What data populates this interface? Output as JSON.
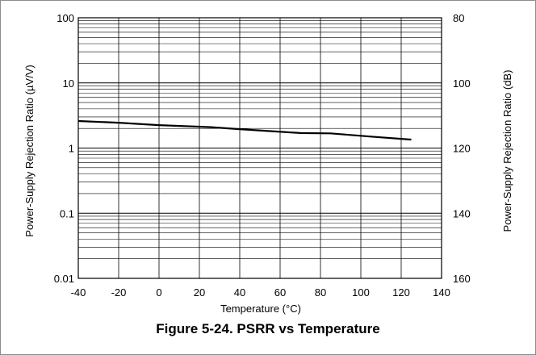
{
  "figure_caption": "Figure 5-24. PSRR vs Temperature",
  "chart_data": {
    "type": "line",
    "xlabel": "Temperature (°C)",
    "ylabel": "Power-Supply Rejection Ratio (µV/V)",
    "ylabel_right": "Power-Supply Rejection Ratio (dB)",
    "xlim": [
      -40,
      140
    ],
    "ylim": [
      0.01,
      100
    ],
    "yscale": "log",
    "xticks": [
      "-40",
      "-20",
      "0",
      "20",
      "40",
      "60",
      "80",
      "100",
      "120",
      "140"
    ],
    "yticks_left": [
      "100",
      "10",
      "1",
      "0.1",
      "0.01"
    ],
    "yticks_right": [
      "80",
      "100",
      "120",
      "140",
      "160"
    ],
    "grid": true,
    "line_color": "#000000",
    "series": [
      {
        "x": [
          -40,
          -20,
          0,
          25,
          40,
          70,
          85,
          105,
          125
        ],
        "y": [
          2.6,
          2.45,
          2.25,
          2.1,
          1.95,
          1.7,
          1.68,
          1.5,
          1.35
        ]
      }
    ]
  }
}
